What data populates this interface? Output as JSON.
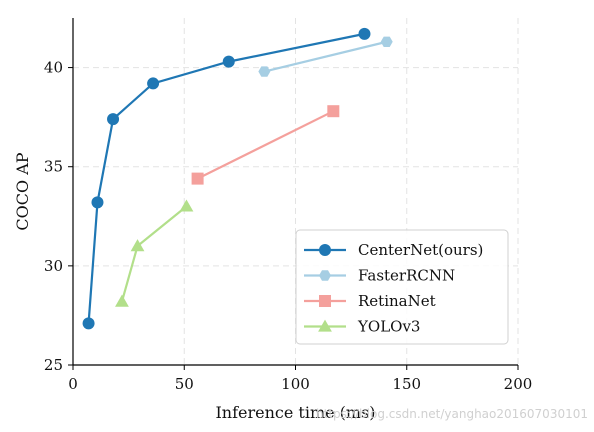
{
  "chart_data": {
    "type": "line",
    "xlabel": "Inference time (ms)",
    "ylabel": "COCO AP",
    "xlim": [
      0,
      200
    ],
    "ylim": [
      25,
      42.5
    ],
    "xticks": [
      0,
      50,
      100,
      150,
      200
    ],
    "yticks": [
      25,
      30,
      35,
      40
    ],
    "grid": true,
    "legend_position": "bottom-right",
    "series": [
      {
        "name": "CenterNet(ours)",
        "color": "#1f77b4",
        "marker": "circle",
        "x": [
          7,
          11,
          18,
          36,
          70,
          131
        ],
        "y": [
          27.1,
          33.2,
          37.4,
          39.2,
          40.3,
          41.7
        ]
      },
      {
        "name": "FasterRCNN",
        "color": "#a6cee3",
        "marker": "hexagon",
        "x": [
          86,
          141
        ],
        "y": [
          39.8,
          41.3
        ]
      },
      {
        "name": "RetinaNet",
        "color": "#f4a09c",
        "marker": "square",
        "x": [
          56,
          117
        ],
        "y": [
          34.4,
          37.8
        ]
      },
      {
        "name": "YOLOv3",
        "color": "#b2df8a",
        "marker": "triangle",
        "x": [
          22,
          29,
          51
        ],
        "y": [
          28.2,
          31.0,
          33.0
        ]
      }
    ]
  },
  "watermark": "https://blog.csdn.net/yanghao201607030101"
}
